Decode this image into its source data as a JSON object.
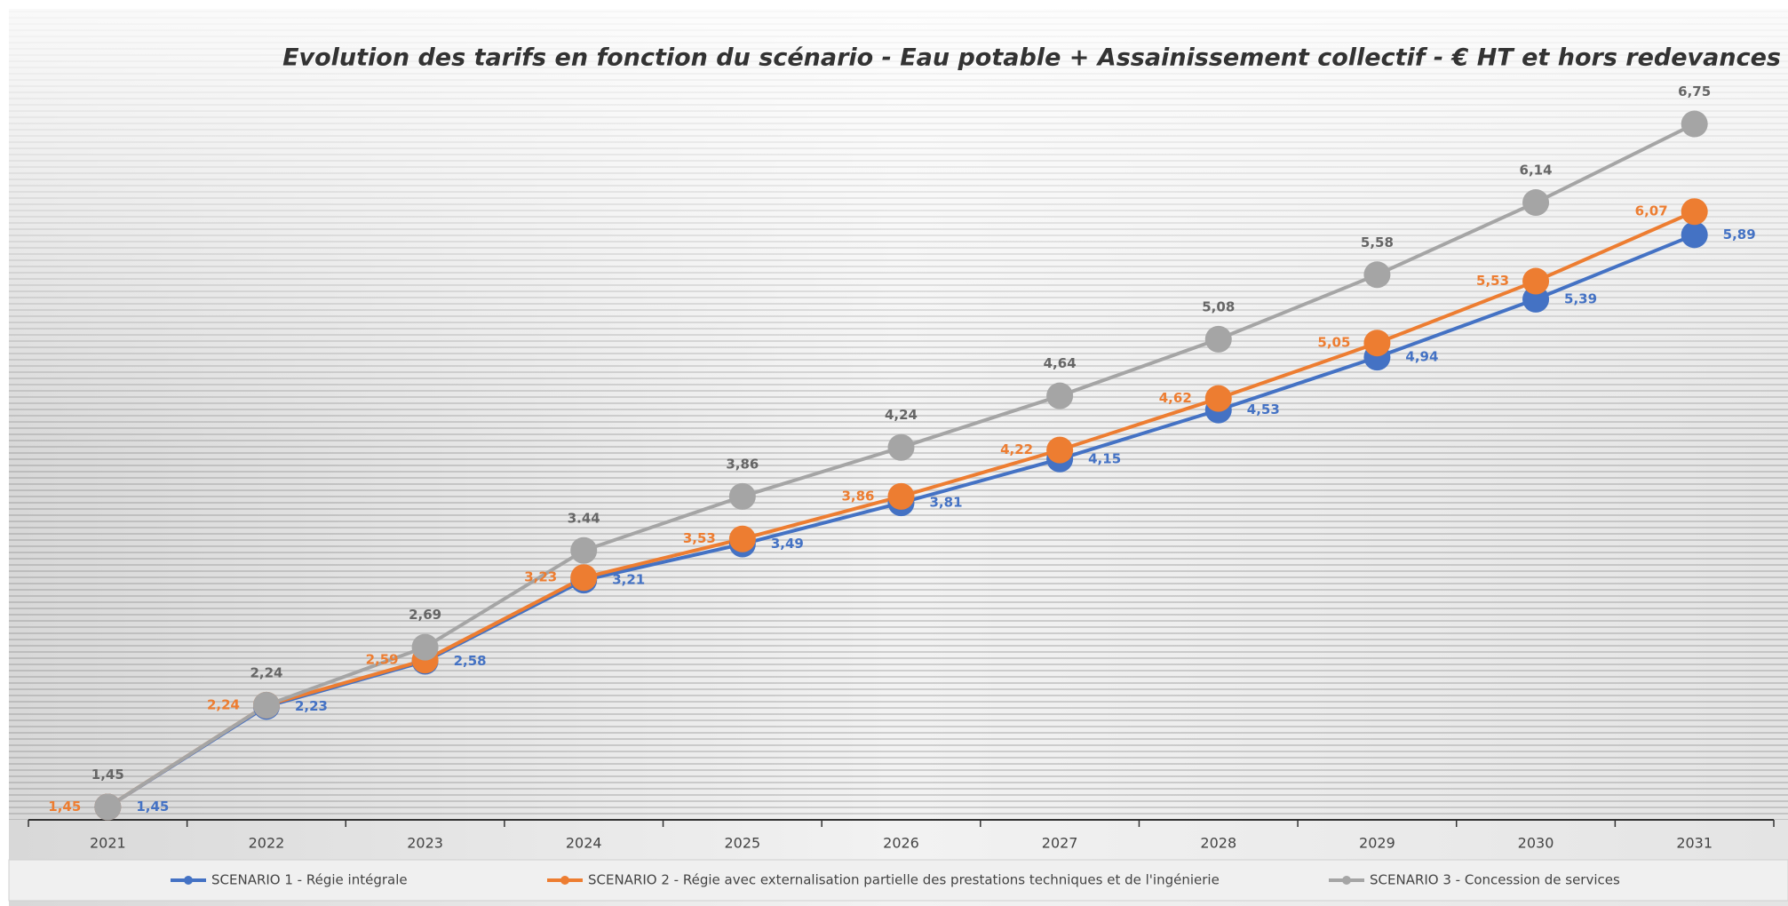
{
  "chart_data": {
    "type": "line",
    "title": "Evolution des tarifs en fonction du scénario - Eau potable + Assainissement collectif - € HT et hors redevances",
    "categories": [
      "2021",
      "2022",
      "2023",
      "2024",
      "2025",
      "2026",
      "2027",
      "2028",
      "2029",
      "2030",
      "2031"
    ],
    "ylim": [
      1.35,
      7.45
    ],
    "legend": "bottom",
    "series": [
      {
        "name": "SCENARIO 1 - Régie intégrale",
        "color": "#4472c4",
        "values": [
          1.45,
          2.23,
          2.58,
          3.21,
          3.49,
          3.81,
          4.15,
          4.53,
          4.94,
          5.39,
          5.89
        ],
        "value_labels": [
          "1,45",
          "2,23",
          "2,58",
          "3,21",
          "3,49",
          "3,81",
          "4,15",
          "4,53",
          "4,94",
          "5,39",
          "5,89"
        ]
      },
      {
        "name": "SCENARIO 2 - Régie avec externalisation partielle des prestations techniques et de l'ingénierie",
        "color": "#ed7d31",
        "values": [
          1.45,
          2.24,
          2.59,
          3.23,
          3.53,
          3.86,
          4.22,
          4.62,
          5.05,
          5.53,
          6.07
        ],
        "value_labels": [
          "1,45",
          "2,24",
          "2,59",
          "3,23",
          "3,53",
          "3,86",
          "4,22",
          "4,62",
          "5,05",
          "5,53",
          "6,07"
        ]
      },
      {
        "name": "SCENARIO 3 - Concession de services",
        "color": "#a5a5a5",
        "values": [
          1.45,
          2.24,
          2.69,
          3.44,
          3.86,
          4.24,
          4.64,
          5.08,
          5.58,
          6.14,
          6.75
        ],
        "value_labels": [
          "1,45",
          "2,24",
          "2,69",
          "3.44",
          "3,86",
          "4,24",
          "4,64",
          "5,08",
          "5,58",
          "6,14",
          "6,75"
        ]
      }
    ]
  }
}
